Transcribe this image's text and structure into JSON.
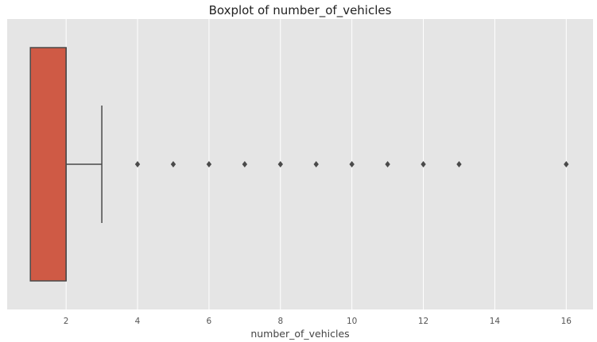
{
  "chart_data": {
    "type": "boxplot",
    "title": "Boxplot of number_of_vehicles",
    "xlabel": "number_of_vehicles",
    "ylabel": "",
    "xlim": [
      0.35,
      16.75
    ],
    "xticks": [
      2,
      4,
      6,
      8,
      10,
      12,
      14,
      16
    ],
    "grid": true,
    "orientation": "horizontal",
    "box": {
      "whisker_low": 1,
      "q1": 1,
      "median": 2,
      "q3": 2,
      "whisker_high": 3
    },
    "outliers": [
      4,
      5,
      6,
      7,
      8,
      9,
      10,
      11,
      12,
      13,
      16
    ],
    "colors": {
      "box_fill": "#cf5a45",
      "line": "#4a4a4a",
      "plot_background": "#e5e5e5",
      "grid": "#ffffff"
    }
  }
}
